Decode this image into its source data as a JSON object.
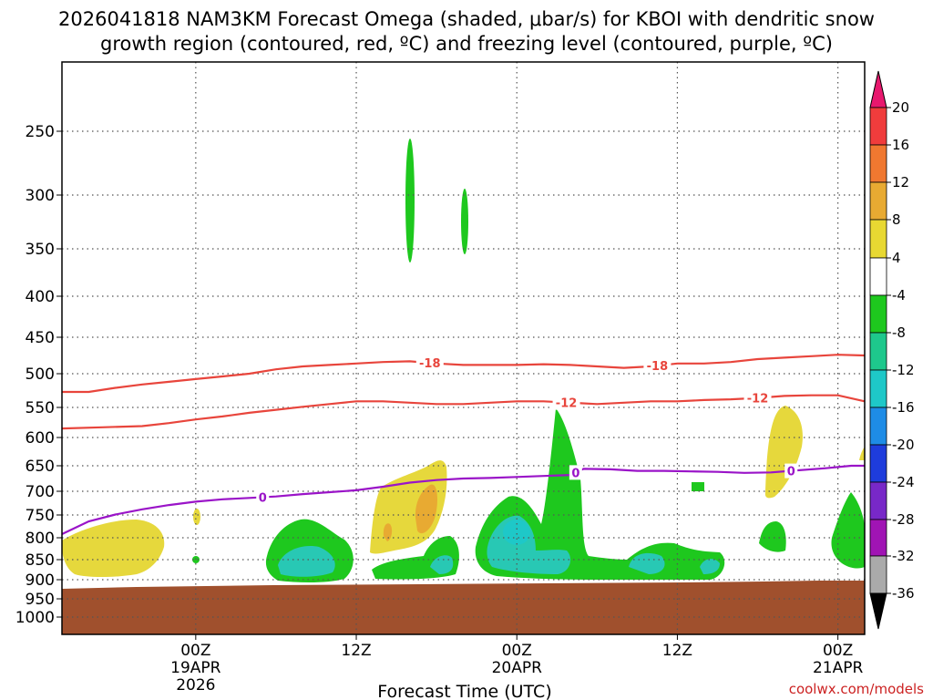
{
  "chart_data": {
    "type": "time-height cross section",
    "title_line1": "2026041818 NAM3KM Forecast Omega (shaded, μbar/s) for KBOI with dendritic snow",
    "title_line2": "growth region (contoured, red, ºC) and freezing level (contoured, purple, ºC)",
    "xlabel": "Forecast Time (UTC)",
    "credit": "coolwx.com/models",
    "x_range_hours": [
      -10,
      50
    ],
    "x_ticks": [
      {
        "hour": 0,
        "lines": [
          "00Z",
          "19APR",
          "2026"
        ]
      },
      {
        "hour": 12,
        "lines": [
          "12Z"
        ]
      },
      {
        "hour": 24,
        "lines": [
          "00Z",
          "20APR"
        ]
      },
      {
        "hour": 36,
        "lines": [
          "12Z"
        ]
      },
      {
        "hour": 48,
        "lines": [
          "00Z",
          "21APR"
        ]
      }
    ],
    "y_axis": "pressure (hPa)",
    "y_ticks": [
      250,
      300,
      350,
      400,
      450,
      500,
      550,
      600,
      650,
      700,
      750,
      800,
      850,
      900,
      950,
      1000
    ],
    "colorbar_ticks": [
      "20",
      "16",
      "12",
      "8",
      "4",
      "-4",
      "-8",
      "-12",
      "-16",
      "-20",
      "-24",
      "-28",
      "-32",
      "-36"
    ],
    "colorbar_colors": [
      "#e8186e",
      "#f03c3c",
      "#f07830",
      "#e8aa32",
      "#e8d832",
      "#ffffff",
      "#1ec81e",
      "#1ec88c",
      "#1ec8c8",
      "#1e8ce6",
      "#1e3cdc",
      "#7828c8",
      "#a014b4",
      "#aaaaaa",
      "#000000"
    ],
    "contours": [
      {
        "name": "dgz-minus18",
        "label": "-18",
        "color": "#e8453c",
        "points": [
          [
            -10,
            527
          ],
          [
            -8,
            527
          ],
          [
            -6,
            521
          ],
          [
            -4,
            516
          ],
          [
            -2,
            512
          ],
          [
            0,
            508
          ],
          [
            2,
            504
          ],
          [
            4,
            500
          ],
          [
            6,
            494
          ],
          [
            8,
            490
          ],
          [
            10,
            488
          ],
          [
            12,
            486
          ],
          [
            14,
            484
          ],
          [
            16,
            483
          ],
          [
            18,
            486
          ],
          [
            20,
            488
          ],
          [
            22,
            488
          ],
          [
            24,
            488
          ],
          [
            26,
            487
          ],
          [
            28,
            488
          ],
          [
            30,
            490
          ],
          [
            32,
            492
          ],
          [
            34,
            490
          ],
          [
            36,
            486
          ],
          [
            38,
            486
          ],
          [
            40,
            484
          ],
          [
            42,
            480
          ],
          [
            44,
            478
          ],
          [
            46,
            476
          ],
          [
            48,
            474
          ],
          [
            50,
            475
          ]
        ],
        "label_hours": [
          17.5,
          34.5
        ]
      },
      {
        "name": "dgz-minus12",
        "label": "-12",
        "color": "#e8453c",
        "points": [
          [
            -10,
            585
          ],
          [
            -7,
            583
          ],
          [
            -4,
            581
          ],
          [
            -2,
            576
          ],
          [
            0,
            570
          ],
          [
            2,
            565
          ],
          [
            4,
            559
          ],
          [
            6,
            554
          ],
          [
            8,
            549
          ],
          [
            10,
            545
          ],
          [
            12,
            541
          ],
          [
            14,
            541
          ],
          [
            16,
            543
          ],
          [
            18,
            545
          ],
          [
            20,
            545
          ],
          [
            22,
            543
          ],
          [
            24,
            541
          ],
          [
            26,
            541
          ],
          [
            28,
            543
          ],
          [
            30,
            545
          ],
          [
            32,
            543
          ],
          [
            34,
            541
          ],
          [
            36,
            541
          ],
          [
            38,
            539
          ],
          [
            40,
            538
          ],
          [
            42,
            536
          ],
          [
            44,
            533
          ],
          [
            46,
            532
          ],
          [
            48,
            532
          ],
          [
            50,
            541
          ]
        ],
        "label_hours": [
          27.7,
          42
        ]
      },
      {
        "name": "freezing-level",
        "label": "0",
        "color": "#9a14c8",
        "points": [
          [
            -10,
            792
          ],
          [
            -8,
            764
          ],
          [
            -6,
            749
          ],
          [
            -4,
            738
          ],
          [
            -2,
            729
          ],
          [
            0,
            722
          ],
          [
            2,
            717
          ],
          [
            4,
            714
          ],
          [
            6,
            711
          ],
          [
            8,
            706
          ],
          [
            10,
            702
          ],
          [
            12,
            698
          ],
          [
            14,
            691
          ],
          [
            16,
            683
          ],
          [
            18,
            678
          ],
          [
            20,
            675
          ],
          [
            22,
            674
          ],
          [
            24,
            672
          ],
          [
            26,
            670
          ],
          [
            28,
            668
          ],
          [
            29,
            656
          ],
          [
            31,
            657
          ],
          [
            33,
            660
          ],
          [
            35,
            660
          ],
          [
            37,
            661
          ],
          [
            39,
            662
          ],
          [
            41,
            664
          ],
          [
            43,
            663
          ],
          [
            45,
            659
          ],
          [
            47,
            655
          ],
          [
            49,
            650
          ],
          [
            50,
            650
          ]
        ],
        "label_hours": [
          5,
          28.4,
          44.5
        ]
      }
    ],
    "shaded_regions": [
      {
        "name": "green-upper-1",
        "value": "-4 to -8",
        "color": "#1ec81e"
      },
      {
        "name": "green-upper-2",
        "value": "-4 to -8",
        "color": "#1ec81e"
      },
      {
        "name": "yellow-left",
        "value": "4 to 8",
        "color": "#e6d83c"
      },
      {
        "name": "yellow-mid",
        "value": "4 to 8",
        "color": "#e6d83c"
      },
      {
        "name": "orange-mid",
        "value": "8 to 12",
        "color": "#e8aa32"
      },
      {
        "name": "yellow-right",
        "value": "4 to 8",
        "color": "#e6d83c"
      },
      {
        "name": "green-low",
        "value": "-4 to -8",
        "color": "#1ec81e"
      },
      {
        "name": "teal-low",
        "value": "-8 to -16",
        "color": "#28c8b4"
      },
      {
        "name": "terrain",
        "value": "below ground",
        "color": "#a0502d"
      }
    ]
  }
}
